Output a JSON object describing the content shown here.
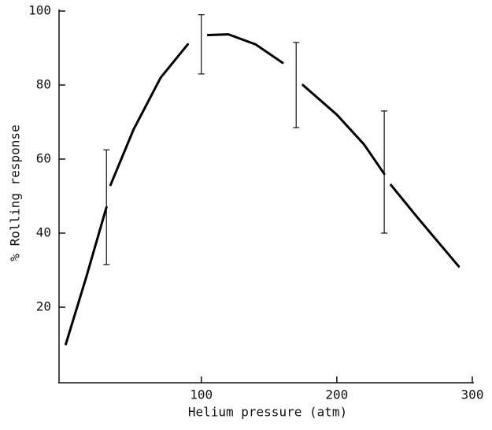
{
  "chart_data": {
    "type": "line",
    "xlabel": "Helium pressure (atm)",
    "ylabel": "% Rolling response",
    "x": [
      0,
      15,
      30,
      null,
      33,
      50,
      70,
      90,
      null,
      105,
      120,
      140,
      160,
      null,
      175,
      200,
      220,
      235,
      null,
      240,
      260,
      290
    ],
    "series": [
      {
        "color": "#000000",
        "values": [
          10,
          28,
          47,
          null,
          53,
          68,
          82,
          91,
          null,
          93.5,
          93.7,
          91,
          86,
          null,
          80,
          72,
          64,
          56,
          null,
          53,
          44,
          31
        ]
      }
    ],
    "errorbars": {
      "x": [
        30,
        100,
        170,
        235
      ],
      "values": [
        47,
        91,
        80,
        56.5
      ],
      "errors": [
        15.5,
        8,
        11.5,
        16.5
      ]
    },
    "xlim": [
      -5,
      300
    ],
    "ylim": [
      0,
      100
    ],
    "xticks": [
      100,
      200,
      300
    ],
    "yticks": [
      20,
      40,
      60,
      80,
      100
    ]
  }
}
